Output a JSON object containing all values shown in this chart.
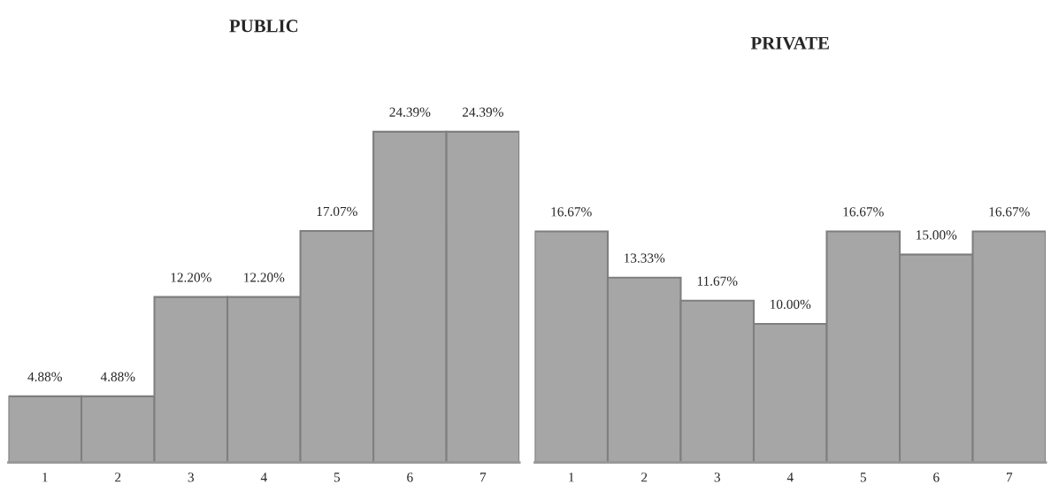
{
  "chart_data": [
    {
      "type": "bar",
      "title": "PUBLIC",
      "categories": [
        "1",
        "2",
        "3",
        "4",
        "5",
        "6",
        "7"
      ],
      "values": [
        4.88,
        4.88,
        12.2,
        12.2,
        17.07,
        24.39,
        24.39
      ],
      "value_labels": [
        "4.88%",
        "4.88%",
        "12.20%",
        "12.20%",
        "17.07%",
        "24.39%",
        "24.39%"
      ],
      "color": "#a6a6a6",
      "grid": false,
      "legend": false
    },
    {
      "type": "bar",
      "title": "PRIVATE",
      "categories": [
        "1",
        "2",
        "3",
        "4",
        "5",
        "6",
        "7"
      ],
      "values": [
        16.67,
        13.33,
        11.67,
        10.0,
        16.67,
        15.0,
        16.67
      ],
      "value_labels": [
        "16.67%",
        "13.33%",
        "11.67%",
        "10.00%",
        "16.67%",
        "15.00%",
        "16.67%"
      ],
      "color": "#a6a6a6",
      "grid": false,
      "legend": false
    }
  ]
}
